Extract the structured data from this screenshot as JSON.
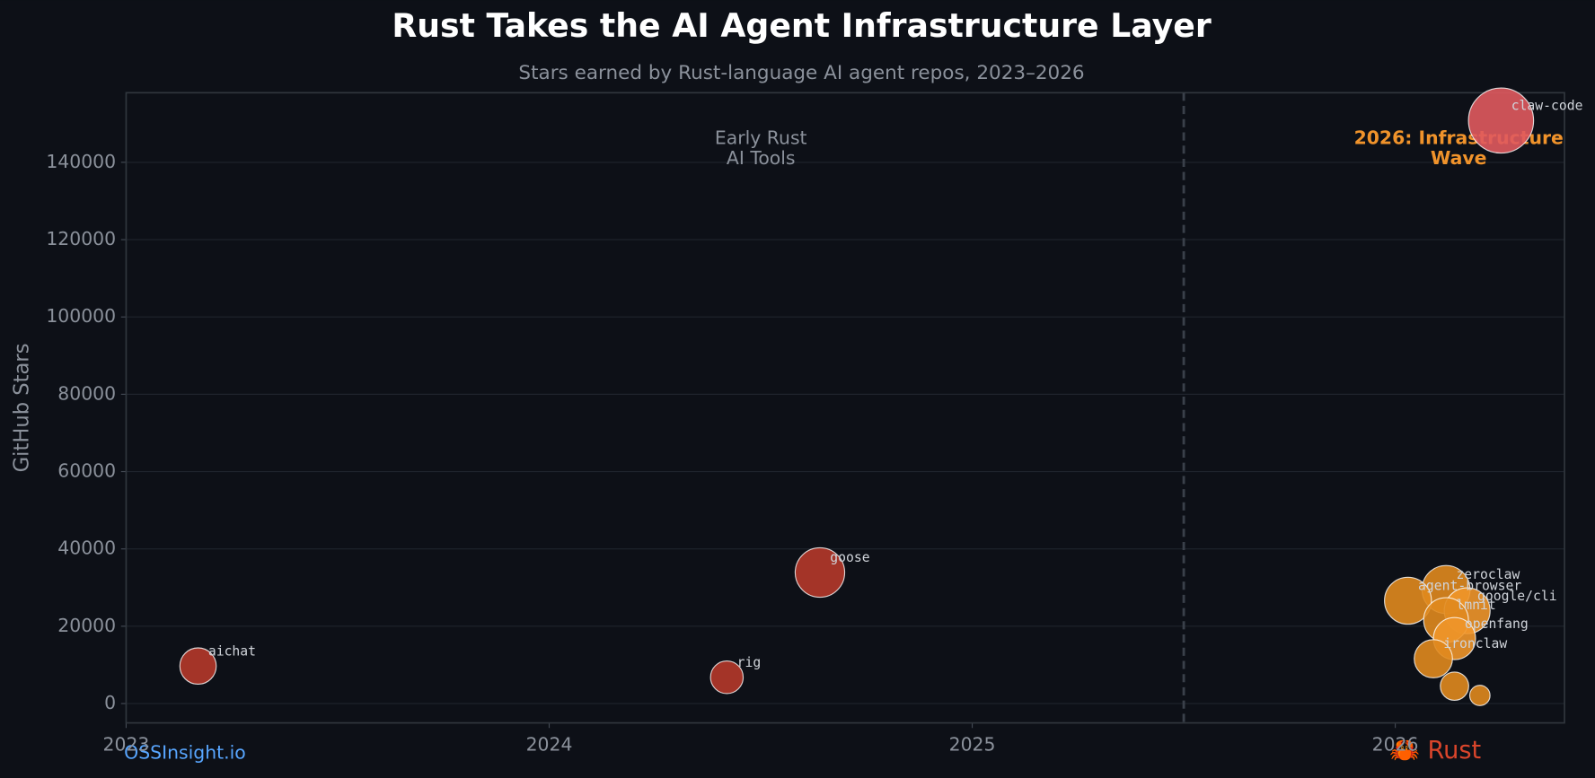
{
  "chart_data": {
    "type": "scatter",
    "title": "Rust Takes the AI Agent Infrastructure Layer",
    "subtitle": "Stars earned by Rust-language AI agent repos, 2023–2026",
    "y_label": "GitHub Stars",
    "xlim": [
      2023,
      2026.4
    ],
    "xticks": [
      2023,
      2024,
      2025,
      2026
    ],
    "ylim": [
      -5000,
      158000
    ],
    "yticks": [
      0,
      20000,
      40000,
      60000,
      80000,
      100000,
      120000,
      140000
    ],
    "grid": true,
    "divider_x": 2025.5,
    "annotations": [
      {
        "lines": [
          "Early Rust",
          "AI Tools"
        ],
        "color": "#8b919b"
      },
      {
        "lines": [
          "2026: Infrastructure",
          "Wave"
        ],
        "color": "#f0932b"
      }
    ],
    "points": {
      "labels": [
        "aichat",
        "rig",
        "goose",
        "claw-code",
        "zeroclaw",
        "agent-browser",
        "google/cli",
        "lmnit",
        "openfang",
        "ironclaw",
        null,
        null
      ],
      "x": [
        2023.17,
        2024.42,
        2024.64,
        2026.25,
        2026.12,
        2026.03,
        2026.17,
        2026.12,
        2026.14,
        2026.09,
        2026.14,
        2026.2
      ],
      "values": [
        9700,
        6800,
        33900,
        150800,
        29500,
        26600,
        24000,
        21600,
        16800,
        11600,
        4500,
        2100
      ],
      "colors": [
        "#b5392a",
        "#b5392a",
        "#b5392a",
        "#e05a5e",
        "#e08a1e",
        "#e08a1e",
        "#f0962a",
        "#e08a1e",
        "#f0962a",
        "#e08a1e",
        "#e08a1e",
        "#e08a1e"
      ]
    },
    "footer_left": "OSSInsight.io",
    "footer_right": "🦀 Rust"
  }
}
